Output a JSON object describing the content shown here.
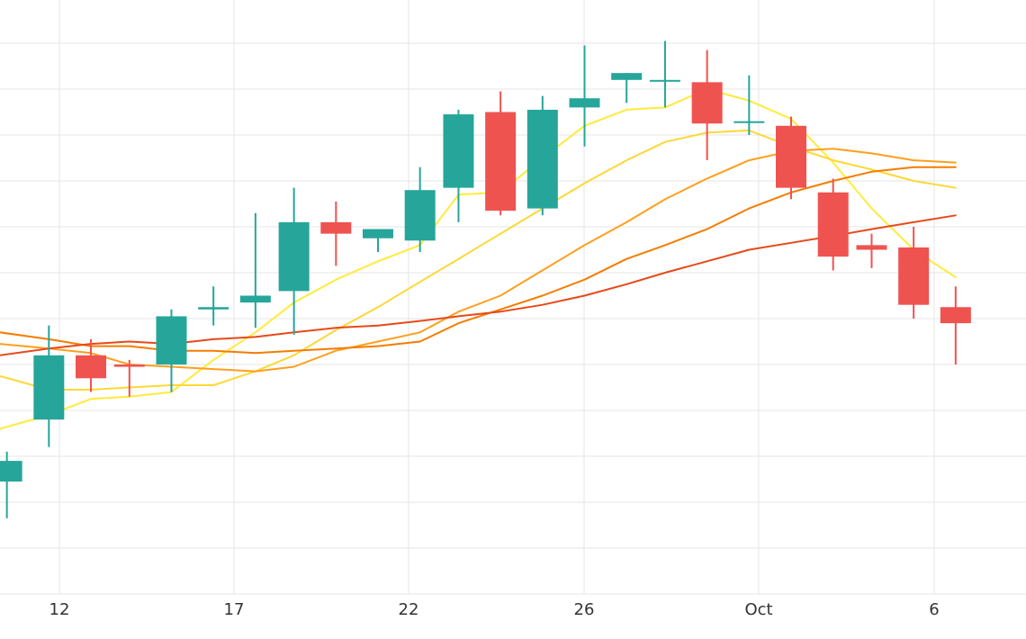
{
  "chart_data": {
    "type": "candlestick",
    "title": "",
    "xlabel": "",
    "ylabel": "",
    "x_tick_labels": [
      "12",
      "17",
      "22",
      "26",
      "Oct",
      "6"
    ],
    "y_tick_labels": [],
    "grid": true,
    "legend": "none",
    "colors": {
      "up": "#26a69a",
      "down": "#ef5350",
      "grid": "#e6e6e6",
      "background": "#ffffff",
      "ma_lines": [
        "#ffeb3b",
        "#fdd835",
        "#ff9f1c",
        "#f57c00",
        "#e64a19"
      ]
    },
    "candles": [
      {
        "x": 10.5,
        "open": 2.45,
        "high": 3.1,
        "low": 1.65,
        "close": 2.9
      },
      {
        "x": 11.7,
        "open": 3.8,
        "high": 5.85,
        "low": 3.2,
        "close": 5.2
      },
      {
        "x": 12.9,
        "open": 5.2,
        "high": 5.55,
        "low": 4.4,
        "close": 4.7
      },
      {
        "x": 14.0,
        "open": 5.0,
        "high": 5.1,
        "low": 4.3,
        "close": 4.95
      },
      {
        "x": 15.2,
        "open": 5.0,
        "high": 6.2,
        "low": 4.4,
        "close": 6.05
      },
      {
        "x": 16.4,
        "open": 6.2,
        "high": 6.7,
        "low": 5.85,
        "close": 6.25
      },
      {
        "x": 17.6,
        "open": 6.35,
        "high": 8.3,
        "low": 5.8,
        "close": 6.5
      },
      {
        "x": 18.7,
        "open": 6.6,
        "high": 8.85,
        "low": 5.65,
        "close": 8.1
      },
      {
        "x": 19.9,
        "open": 8.1,
        "high": 8.55,
        "low": 7.15,
        "close": 7.85
      },
      {
        "x": 21.1,
        "open": 7.75,
        "high": 7.95,
        "low": 7.45,
        "close": 7.95
      },
      {
        "x": 22.3,
        "open": 7.7,
        "high": 9.3,
        "low": 7.45,
        "close": 8.8
      },
      {
        "x": 23.4,
        "open": 8.85,
        "high": 10.55,
        "low": 8.1,
        "close": 10.45
      },
      {
        "x": 24.6,
        "open": 10.5,
        "high": 10.95,
        "low": 8.25,
        "close": 8.35
      },
      {
        "x": 25.8,
        "open": 8.4,
        "high": 10.85,
        "low": 8.25,
        "close": 10.55
      },
      {
        "x": 27.0,
        "open": 10.6,
        "high": 11.95,
        "low": 9.75,
        "close": 10.8
      },
      {
        "x": 28.2,
        "open": 11.2,
        "high": 11.35,
        "low": 10.7,
        "close": 11.35
      },
      {
        "x": 29.3,
        "open": 11.2,
        "high": 12.05,
        "low": 10.6,
        "close": 11.2
      },
      {
        "x": 30.5,
        "open": 11.15,
        "high": 11.85,
        "low": 9.45,
        "close": 10.25
      },
      {
        "x": 31.7,
        "open": 10.3,
        "high": 11.3,
        "low": 10.0,
        "close": 10.3
      },
      {
        "x": 32.9,
        "open": 10.2,
        "high": 10.4,
        "low": 8.6,
        "close": 8.85
      },
      {
        "x": 34.1,
        "open": 8.75,
        "high": 9.05,
        "low": 7.05,
        "close": 7.35
      },
      {
        "x": 35.2,
        "open": 7.6,
        "high": 7.85,
        "low": 7.1,
        "close": 7.5
      },
      {
        "x": 36.4,
        "open": 7.55,
        "high": 8.0,
        "low": 6.0,
        "close": 6.3
      },
      {
        "x": 37.6,
        "open": 6.25,
        "high": 6.7,
        "low": 5.0,
        "close": 5.9
      }
    ],
    "ma_series": [
      {
        "x": [
          10.3,
          11.7,
          12.9,
          14.0,
          15.2,
          16.4,
          17.6,
          18.7,
          19.9,
          21.1,
          22.3,
          23.4,
          24.6,
          25.8,
          27.0,
          28.2,
          29.3,
          30.5,
          31.7,
          32.9,
          34.1,
          35.2,
          36.4,
          37.6
        ],
        "y": [
          3.6,
          3.9,
          4.25,
          4.3,
          4.4,
          5.1,
          5.7,
          6.35,
          6.85,
          7.25,
          7.6,
          8.7,
          8.75,
          9.5,
          10.2,
          10.55,
          10.6,
          11.0,
          10.75,
          10.35,
          9.4,
          8.4,
          7.5,
          6.9
        ]
      },
      {
        "x": [
          10.3,
          11.7,
          12.9,
          14.0,
          15.2,
          16.4,
          17.6,
          18.7,
          19.9,
          21.1,
          22.3,
          23.4,
          24.6,
          25.8,
          27.0,
          28.2,
          29.3,
          30.5,
          31.7,
          32.9,
          34.1,
          35.2,
          36.4,
          37.6
        ],
        "y": [
          4.75,
          4.45,
          4.45,
          4.5,
          4.55,
          4.55,
          4.85,
          5.2,
          5.75,
          6.25,
          6.8,
          7.3,
          7.85,
          8.4,
          8.95,
          9.45,
          9.85,
          10.05,
          10.1,
          9.75,
          9.45,
          9.25,
          9.0,
          8.85
        ]
      },
      {
        "x": [
          10.3,
          11.7,
          12.9,
          14.0,
          15.2,
          16.4,
          17.6,
          18.7,
          19.9,
          21.1,
          22.3,
          23.4,
          24.6,
          25.8,
          27.0,
          28.2,
          29.3,
          30.5,
          31.7,
          32.9,
          34.1,
          35.2,
          36.4,
          37.6
        ],
        "y": [
          5.45,
          5.35,
          5.25,
          5.0,
          4.95,
          4.9,
          4.85,
          4.95,
          5.3,
          5.5,
          5.7,
          6.15,
          6.5,
          7.05,
          7.6,
          8.1,
          8.6,
          9.05,
          9.45,
          9.65,
          9.7,
          9.6,
          9.45,
          9.4
        ]
      },
      {
        "x": [
          10.3,
          11.7,
          12.9,
          14.0,
          15.2,
          16.4,
          17.6,
          18.7,
          19.9,
          21.1,
          22.3,
          23.4,
          24.6,
          25.8,
          27.0,
          28.2,
          29.3,
          30.5,
          31.7,
          32.9,
          34.1,
          35.2,
          36.4,
          37.6
        ],
        "y": [
          5.7,
          5.55,
          5.4,
          5.4,
          5.3,
          5.3,
          5.25,
          5.3,
          5.35,
          5.4,
          5.5,
          5.9,
          6.2,
          6.5,
          6.85,
          7.3,
          7.6,
          7.95,
          8.4,
          8.75,
          9.0,
          9.2,
          9.3,
          9.3
        ]
      },
      {
        "x": [
          10.3,
          11.7,
          12.9,
          14.0,
          15.2,
          16.4,
          17.6,
          18.7,
          19.9,
          21.1,
          22.3,
          23.4,
          24.6,
          25.8,
          27.0,
          28.2,
          29.3,
          30.5,
          31.7,
          32.9,
          34.1,
          35.2,
          36.4,
          37.6
        ],
        "y": [
          5.2,
          5.35,
          5.45,
          5.5,
          5.45,
          5.55,
          5.6,
          5.7,
          5.8,
          5.85,
          5.95,
          6.05,
          6.15,
          6.3,
          6.5,
          6.75,
          7.0,
          7.25,
          7.5,
          7.65,
          7.8,
          7.95,
          8.1,
          8.25
        ]
      }
    ]
  }
}
